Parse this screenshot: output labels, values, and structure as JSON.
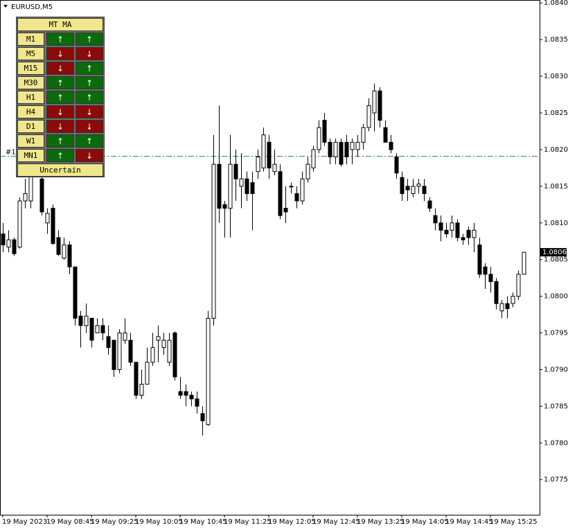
{
  "chart_data": {
    "type": "candlestick",
    "title": "EURUSD,M5",
    "categories": [
      "19 May 2023",
      null,
      null,
      null,
      null,
      null,
      null,
      null,
      "19 May 08:45",
      null,
      null,
      null,
      null,
      null,
      null,
      null,
      "19 May 09:25",
      null,
      null,
      null,
      null,
      null,
      null,
      null,
      "19 May 10:05",
      null,
      null,
      null,
      null,
      null,
      null,
      null,
      "19 May 10:45",
      null,
      null,
      null,
      null,
      null,
      null,
      null,
      "19 May 11:25",
      null,
      null,
      null,
      null,
      null,
      null,
      null,
      "19 May 12:05",
      null,
      null,
      null,
      null,
      null,
      null,
      null,
      "19 May 12:45",
      null,
      null,
      null,
      null,
      null,
      null,
      null,
      "19 May 13:25",
      null,
      null,
      null,
      null,
      null,
      null,
      null,
      "19 May 14:05",
      null,
      null,
      null,
      null,
      null,
      null,
      null,
      "19 May 14:45",
      null,
      null,
      null,
      null,
      null,
      null,
      null,
      "19 May 15:25",
      null,
      null,
      null,
      null,
      null,
      null
    ],
    "open": [
      1.08085,
      1.08067,
      1.08077,
      1.08067,
      1.0813,
      1.0813,
      1.0818,
      1.0816,
      1.081,
      1.0812,
      1.0808,
      1.08052,
      1.0807,
      1.0804,
      1.07973,
      1.0796,
      1.0797,
      1.0795,
      1.0796,
      1.07945,
      1.0794,
      1.079,
      1.0794,
      1.0794,
      1.0791,
      1.07865,
      1.0788,
      1.0791,
      1.0794,
      1.0793,
      1.0791,
      1.0795,
      1.0787,
      1.0787,
      1.07865,
      1.0786,
      1.0784,
      1.07825,
      1.0797,
      1.0818,
      1.08125,
      1.0812,
      1.0818,
      1.0815,
      1.0816,
      1.08155,
      1.0817,
      1.08175,
      1.0821,
      1.0817,
      1.0817,
      1.0812,
      1.0815,
      1.0814,
      1.0813,
      1.0816,
      1.08175,
      1.082,
      1.0824,
      1.0821,
      1.0819,
      1.0821,
      1.0821,
      1.082,
      1.082,
      1.0821,
      1.0823,
      1.0825,
      1.0828,
      1.0823,
      1.0821,
      1.0819,
      1.08162,
      1.0815,
      1.0814,
      1.0815,
      1.0815,
      1.0813,
      1.0811,
      1.081,
      1.0809,
      1.0809,
      1.081,
      1.0808,
      1.0809,
      1.0808,
      1.0807,
      1.0804,
      1.0803,
      1.0802,
      1.0798,
      1.0799,
      1.0799,
      1.08,
      1.0803
    ],
    "high": [
      1.081,
      1.0809,
      1.0808,
      1.08135,
      1.0816,
      1.0819,
      1.0822,
      1.0818,
      1.0812,
      1.08125,
      1.0809,
      1.0808,
      1.08075,
      1.0804,
      1.0798,
      1.0799,
      1.0797,
      1.0797,
      1.0797,
      1.0796,
      1.0794,
      1.07955,
      1.0797,
      1.0795,
      1.0791,
      1.079,
      1.0793,
      1.0795,
      1.0796,
      1.0795,
      1.0795,
      1.07952,
      1.0789,
      1.0788,
      1.0787,
      1.0787,
      1.0785,
      1.0798,
      1.0822,
      1.0826,
      1.0813,
      1.0822,
      1.082,
      1.08195,
      1.0817,
      1.0817,
      1.082,
      1.0823,
      1.0822,
      1.082,
      1.0818,
      1.0815,
      1.08155,
      1.0815,
      1.0817,
      1.0819,
      1.08205,
      1.0824,
      1.0825,
      1.08215,
      1.08215,
      1.08215,
      1.0822,
      1.08215,
      1.0822,
      1.08235,
      1.0827,
      1.0829,
      1.08285,
      1.0824,
      1.0822,
      1.08195,
      1.0817,
      1.0816,
      1.0816,
      1.0816,
      1.0816,
      1.08135,
      1.0812,
      1.0811,
      1.081,
      1.0811,
      1.08105,
      1.08085,
      1.08095,
      1.081,
      1.0808,
      1.08045,
      1.0804,
      1.08025,
      1.07995,
      1.08,
      1.08005,
      1.08035,
      1.0806
    ],
    "low": [
      1.0806,
      1.0806,
      1.08055,
      1.08065,
      1.0812,
      1.0812,
      1.0817,
      1.0811,
      1.08085,
      1.0807,
      1.08055,
      1.0805,
      1.0803,
      1.0796,
      1.0793,
      1.0795,
      1.0793,
      1.0795,
      1.0794,
      1.0792,
      1.0789,
      1.07895,
      1.07935,
      1.07905,
      1.0786,
      1.0786,
      1.0788,
      1.07905,
      1.0791,
      1.0792,
      1.07905,
      1.07885,
      1.0786,
      1.0785,
      1.0785,
      1.0784,
      1.0781,
      1.07823,
      1.0796,
      1.081,
      1.0808,
      1.0808,
      1.0813,
      1.0812,
      1.0813,
      1.0809,
      1.0816,
      1.0817,
      1.0816,
      1.08165,
      1.08105,
      1.081,
      1.0814,
      1.0812,
      1.08125,
      1.08155,
      1.0817,
      1.08195,
      1.08205,
      1.0818,
      1.0818,
      1.08177,
      1.0818,
      1.0818,
      1.0819,
      1.082,
      1.08225,
      1.08225,
      1.0823,
      1.0821,
      1.08195,
      1.0816,
      1.0813,
      1.0813,
      1.08135,
      1.0814,
      1.0813,
      1.08115,
      1.0809,
      1.08075,
      1.0808,
      1.0808,
      1.08075,
      1.0807,
      1.0807,
      1.0806,
      1.08025,
      1.0801,
      1.08005,
      1.07982,
      1.0797,
      1.0797,
      1.07985,
      1.07995,
      1.0803
    ],
    "close": [
      1.0807,
      1.08077,
      1.08058,
      1.0813,
      1.0814,
      1.0818,
      1.082,
      1.08115,
      1.08113,
      1.08072,
      1.08057,
      1.0807,
      1.0804,
      1.0797,
      1.0796,
      1.07973,
      1.0794,
      1.0796,
      1.0795,
      1.0793,
      1.079,
      1.0795,
      1.0795,
      1.0791,
      1.07865,
      1.0788,
      1.0791,
      1.0793,
      1.07945,
      1.0794,
      1.0794,
      1.0789,
      1.07865,
      1.07865,
      1.0786,
      1.0785,
      1.0783,
      1.0797,
      1.0818,
      1.0812,
      1.0812,
      1.0818,
      1.0816,
      1.0816,
      1.0814,
      1.0814,
      1.0819,
      1.0822,
      1.08175,
      1.0818,
      1.0811,
      1.08115,
      1.0815,
      1.0813,
      1.0816,
      1.0818,
      1.082,
      1.0823,
      1.0821,
      1.0819,
      1.0821,
      1.0818,
      1.0819,
      1.0821,
      1.0821,
      1.0823,
      1.0826,
      1.0828,
      1.0824,
      1.0821,
      1.082,
      1.08168,
      1.0814,
      1.08145,
      1.0815,
      1.08153,
      1.0814,
      1.0812,
      1.081,
      1.0809,
      1.08085,
      1.081,
      1.0808,
      1.08077,
      1.0808,
      1.0809,
      1.0803,
      1.0803,
      1.0802,
      1.0799,
      1.0799,
      1.07983,
      1.08,
      1.0803,
      1.0806
    ],
    "up_color": "#ffffff",
    "down_color": "#000000",
    "ylim": [
      1.07702,
      1.08404
    ],
    "yticks": [
      1.0775,
      {
        "value": 1.078,
        "label": "1.0780"
      },
      1.0785,
      {
        "value": 1.079,
        "label": "1.0790"
      },
      1.0795,
      {
        "value": 1.08,
        "label": "1.0800"
      },
      1.0805,
      {
        "value": 1.081,
        "label": "1.0810"
      },
      1.0815,
      {
        "value": 1.082,
        "label": "1.0820"
      },
      1.0825,
      {
        "value": 1.083,
        "label": "1.0830"
      },
      1.0835,
      {
        "value": 1.084,
        "label": "1.0840"
      }
    ],
    "current_price": 1.0806,
    "order": {
      "label": "#1",
      "price": 1.08191,
      "color": "#2e8b57"
    },
    "grid": false
  },
  "panel": {
    "title": "MT MA",
    "rows": [
      {
        "timeframe": "M1",
        "signals": [
          "↑",
          "↑"
        ]
      },
      {
        "timeframe": "M5",
        "signals": [
          "↓",
          "↓"
        ]
      },
      {
        "timeframe": "M15",
        "signals": [
          "↓",
          "↑"
        ]
      },
      {
        "timeframe": "M30",
        "signals": [
          "↑",
          "↑"
        ]
      },
      {
        "timeframe": "H1",
        "signals": [
          "↑",
          "↑"
        ]
      },
      {
        "timeframe": "H4",
        "signals": [
          "↓",
          "↓"
        ]
      },
      {
        "timeframe": "D1",
        "signals": [
          "↓",
          "↓"
        ]
      },
      {
        "timeframe": "W1",
        "signals": [
          "↑",
          "↑"
        ]
      },
      {
        "timeframe": "MN1",
        "signals": [
          "↑",
          "↓"
        ]
      }
    ],
    "status": "Uncertain",
    "signal_colors": {
      "↑": "#0b6b0b",
      "↓": "#8b0a0a"
    }
  }
}
